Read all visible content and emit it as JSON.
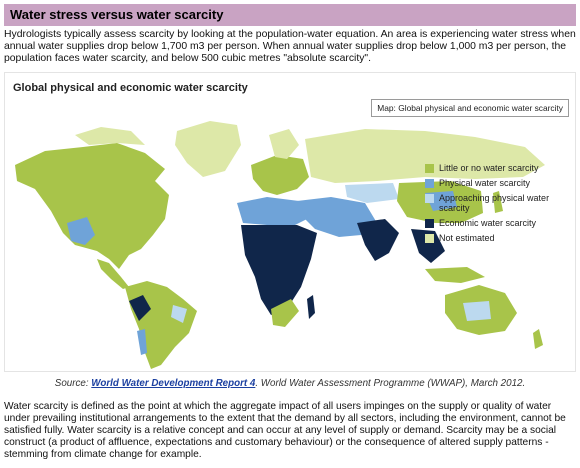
{
  "section": {
    "heading": "Water stress versus water scarcity",
    "intro": "Hydrologists typically assess scarcity by looking at the population-water equation. An area is experiencing water stress when annual water supplies drop below 1,700 m3 per person. When annual water supplies drop below 1,000 m3 per person, the population faces water scarcity, and below 500 cubic metres \"absolute scarcity\"."
  },
  "figure": {
    "title": "Global physical and economic water scarcity",
    "map_label": "Map: Global physical and economic water scarcity",
    "legend": [
      {
        "label": "Little or no water scarcity",
        "color": "#a8c44a"
      },
      {
        "label": "Physical water scarcity",
        "color": "#6fa3d8"
      },
      {
        "label": "Approaching physical water scarcity",
        "color": "#bcd9ef"
      },
      {
        "label": "Economic water scarcity",
        "color": "#10264a"
      },
      {
        "label": "Not estimated",
        "color": "#dde8a8"
      }
    ]
  },
  "source": {
    "prefix": "Source: ",
    "link_text": "World Water Development Report 4",
    "suffix": ". World Water Assessment Programme (WWAP), March 2012."
  },
  "definition": "Water scarcity is defined as the point at which the aggregate impact of all users impinges on the supply or quality of water under prevailing institutional arrangements to the extent that the demand by all sectors, including the environment, cannot be satisfied fully. Water scarcity is a relative concept and can occur at any level of supply or demand. Scarcity may be a social construct (a product of affluence, expectations and customary behaviour) or the consequence of altered supply patterns - stemming from climate change for example."
}
